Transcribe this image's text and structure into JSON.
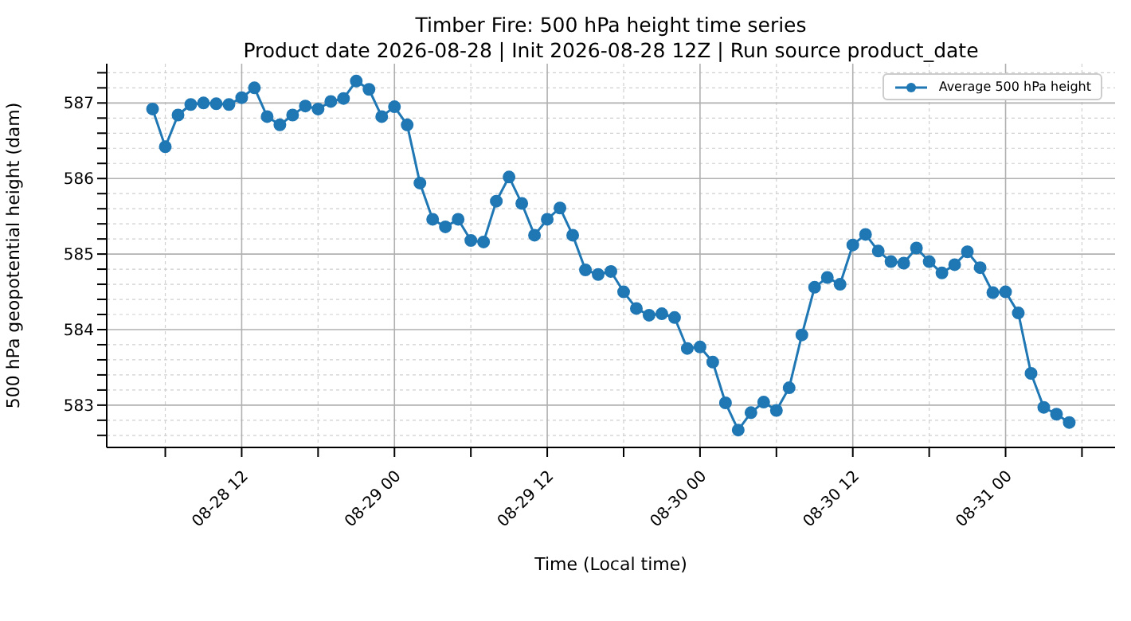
{
  "chart_data": {
    "type": "line",
    "title": "Timber Fire: 500 hPa height time series",
    "subtitle": "Product date 2026-08-28 | Init 2026-08-28 12Z | Run source product_date",
    "xlabel": "Time (Local time)",
    "ylabel": "500 hPa geopotential height (dam)",
    "x": [
      "2026-08-28T05:00",
      "2026-08-28T06:00",
      "2026-08-28T07:00",
      "2026-08-28T08:00",
      "2026-08-28T09:00",
      "2026-08-28T10:00",
      "2026-08-28T11:00",
      "2026-08-28T12:00",
      "2026-08-28T13:00",
      "2026-08-28T14:00",
      "2026-08-28T15:00",
      "2026-08-28T16:00",
      "2026-08-28T17:00",
      "2026-08-28T18:00",
      "2026-08-28T19:00",
      "2026-08-28T20:00",
      "2026-08-28T21:00",
      "2026-08-28T22:00",
      "2026-08-28T23:00",
      "2026-08-29T00:00",
      "2026-08-29T01:00",
      "2026-08-29T02:00",
      "2026-08-29T03:00",
      "2026-08-29T04:00",
      "2026-08-29T05:00",
      "2026-08-29T06:00",
      "2026-08-29T07:00",
      "2026-08-29T08:00",
      "2026-08-29T09:00",
      "2026-08-29T10:00",
      "2026-08-29T11:00",
      "2026-08-29T12:00",
      "2026-08-29T13:00",
      "2026-08-29T14:00",
      "2026-08-29T15:00",
      "2026-08-29T16:00",
      "2026-08-29T17:00",
      "2026-08-29T18:00",
      "2026-08-29T19:00",
      "2026-08-29T20:00",
      "2026-08-29T21:00",
      "2026-08-29T22:00",
      "2026-08-29T23:00",
      "2026-08-30T00:00",
      "2026-08-30T01:00",
      "2026-08-30T02:00",
      "2026-08-30T03:00",
      "2026-08-30T04:00",
      "2026-08-30T05:00",
      "2026-08-30T06:00",
      "2026-08-30T07:00",
      "2026-08-30T08:00",
      "2026-08-30T09:00",
      "2026-08-30T10:00",
      "2026-08-30T11:00",
      "2026-08-30T12:00",
      "2026-08-30T13:00",
      "2026-08-30T14:00",
      "2026-08-30T15:00",
      "2026-08-30T16:00",
      "2026-08-30T17:00",
      "2026-08-30T18:00",
      "2026-08-30T19:00",
      "2026-08-30T20:00",
      "2026-08-30T21:00",
      "2026-08-30T22:00",
      "2026-08-30T23:00",
      "2026-08-31T00:00",
      "2026-08-31T01:00",
      "2026-08-31T02:00",
      "2026-08-31T03:00",
      "2026-08-31T04:00",
      "2026-08-31T05:00"
    ],
    "series": [
      {
        "name": "Average 500 hPa height",
        "color": "#1f77b4",
        "values": [
          586.92,
          586.42,
          586.84,
          586.98,
          587.0,
          586.99,
          586.98,
          587.07,
          587.2,
          586.82,
          586.71,
          586.84,
          586.96,
          586.92,
          587.02,
          587.06,
          587.29,
          587.18,
          586.82,
          586.95,
          586.71,
          585.94,
          585.46,
          585.36,
          585.46,
          585.18,
          585.16,
          585.7,
          586.02,
          585.67,
          585.25,
          585.46,
          585.61,
          585.25,
          584.79,
          584.73,
          584.77,
          584.5,
          584.28,
          584.19,
          584.21,
          584.16,
          583.75,
          583.77,
          583.57,
          583.03,
          582.67,
          582.9,
          583.04,
          582.93,
          583.23,
          583.93,
          584.56,
          584.69,
          584.6,
          585.12,
          585.26,
          585.04,
          584.9,
          584.88,
          585.08,
          584.9,
          584.75,
          584.86,
          585.03,
          584.82,
          584.49,
          584.5,
          584.22,
          583.42,
          582.97,
          582.88,
          582.77
        ]
      }
    ],
    "xlim": [
      "2026-08-28T01:24",
      "2026-08-31T08:36"
    ],
    "xticks": [
      {
        "value": "2026-08-28T06:00",
        "label": null
      },
      {
        "value": "2026-08-28T12:00",
        "label": "08-28 12"
      },
      {
        "value": "2026-08-28T18:00",
        "label": null
      },
      {
        "value": "2026-08-29T00:00",
        "label": "08-29 00"
      },
      {
        "value": "2026-08-29T06:00",
        "label": null
      },
      {
        "value": "2026-08-29T12:00",
        "label": "08-29 12"
      },
      {
        "value": "2026-08-29T18:00",
        "label": null
      },
      {
        "value": "2026-08-30T00:00",
        "label": "08-30 00"
      },
      {
        "value": "2026-08-30T06:00",
        "label": null
      },
      {
        "value": "2026-08-30T12:00",
        "label": "08-30 12"
      },
      {
        "value": "2026-08-30T18:00",
        "label": null
      },
      {
        "value": "2026-08-31T00:00",
        "label": "08-31 00"
      },
      {
        "value": "2026-08-31T06:00",
        "label": null
      }
    ],
    "ylim": [
      582.44,
      587.52
    ],
    "yticks": [
      {
        "value": 582.6,
        "label": null
      },
      {
        "value": 582.8,
        "label": null
      },
      583,
      {
        "value": 583.2,
        "label": null
      },
      {
        "value": 583.4,
        "label": null
      },
      {
        "value": 583.6,
        "label": null
      },
      {
        "value": 583.8,
        "label": null
      },
      584,
      {
        "value": 584.2,
        "label": null
      },
      {
        "value": 584.4,
        "label": null
      },
      {
        "value": 584.6,
        "label": null
      },
      {
        "value": 584.8,
        "label": null
      },
      585,
      {
        "value": 585.2,
        "label": null
      },
      {
        "value": 585.4,
        "label": null
      },
      {
        "value": 585.6,
        "label": null
      },
      {
        "value": 585.8,
        "label": null
      },
      586,
      {
        "value": 586.2,
        "label": null
      },
      {
        "value": 586.4,
        "label": null
      },
      {
        "value": 586.6,
        "label": null
      },
      {
        "value": 586.8,
        "label": null
      },
      587,
      {
        "value": 587.2,
        "label": null
      },
      {
        "value": 587.4,
        "label": null
      }
    ],
    "grid": true,
    "legend": "top right",
    "marker": "circle",
    "line_style": "solid"
  }
}
